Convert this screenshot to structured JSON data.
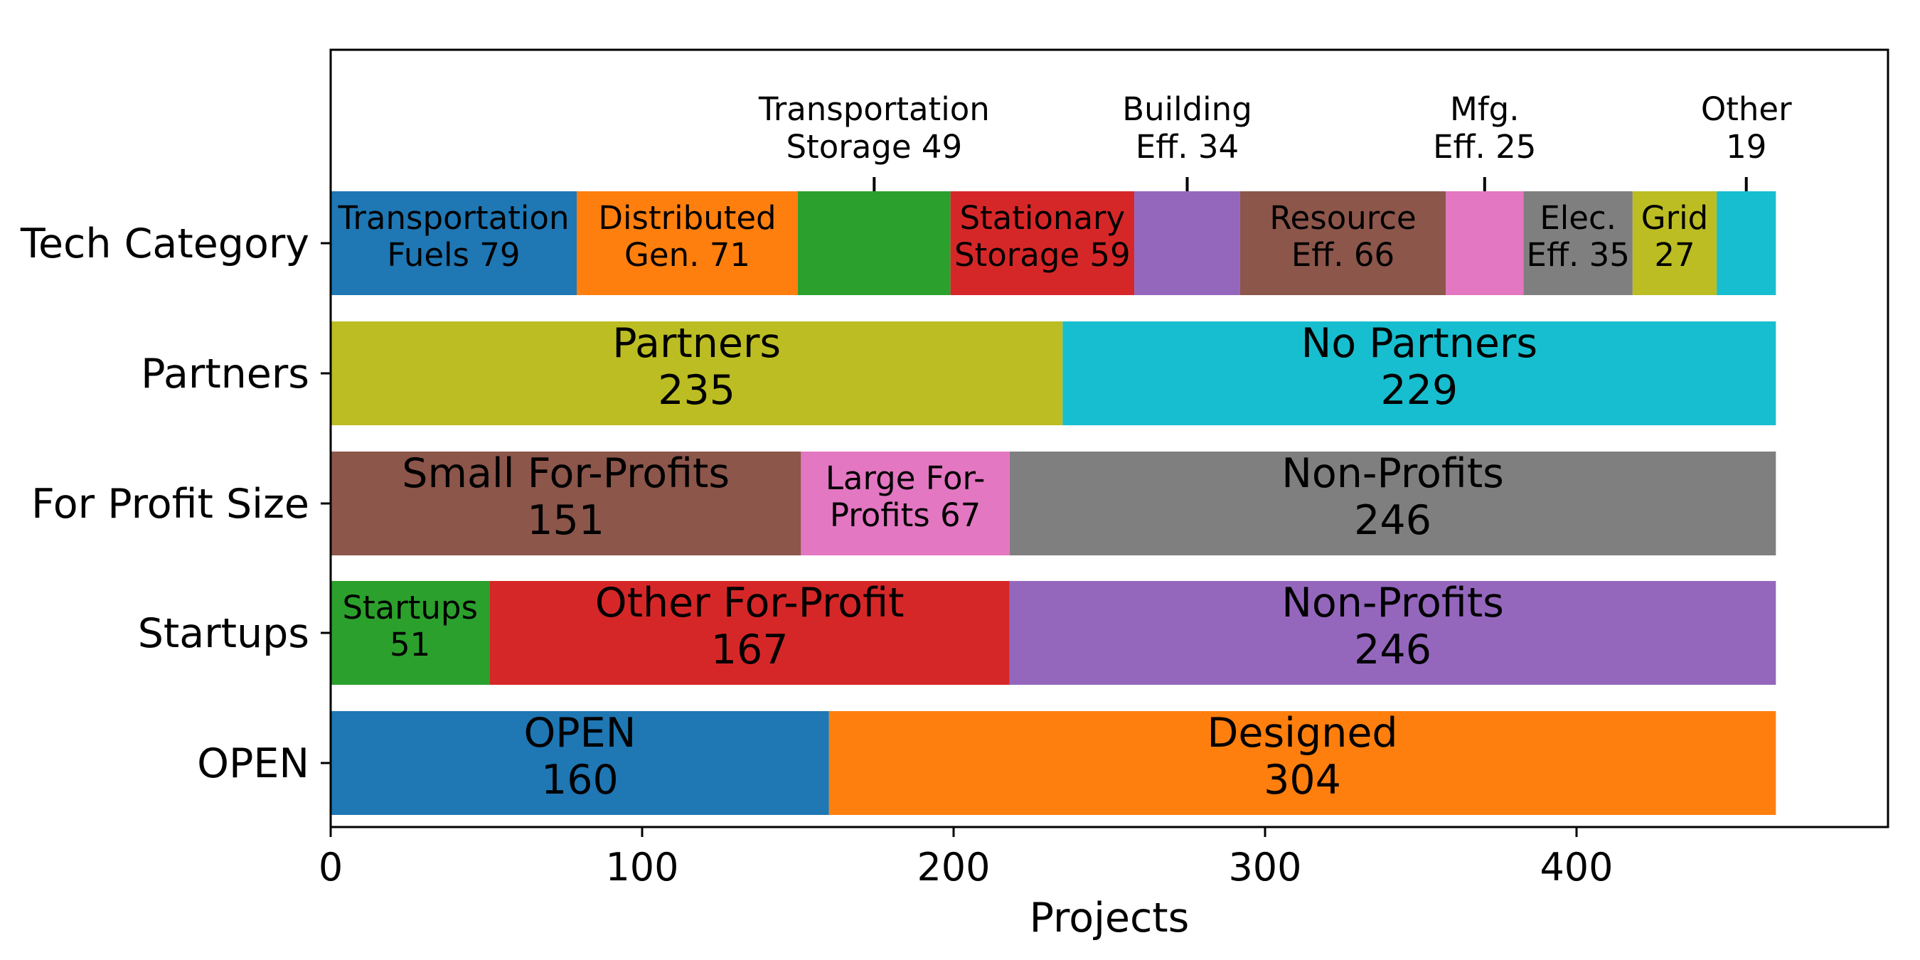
{
  "chart_data": {
    "type": "bar",
    "orientation": "horizontal",
    "stacked": true,
    "xlabel": "Projects",
    "ylabel": "",
    "title": "",
    "xlim": [
      0,
      500
    ],
    "xticks": [
      "0",
      "100",
      "200",
      "300",
      "400"
    ],
    "grid": false,
    "legend": "none",
    "categories": [
      "Tech Category",
      "Partners",
      "For Profit Size",
      "Startups",
      "OPEN"
    ],
    "rows": [
      {
        "category": "Tech Category",
        "segments": [
          {
            "lines": [
              "Transportation",
              "Fuels 79"
            ],
            "value": 79,
            "color": "#1f77b4",
            "label_pos": "inside"
          },
          {
            "lines": [
              "Distributed",
              "Gen. 71"
            ],
            "value": 71,
            "color": "#ff7f0e",
            "label_pos": "inside"
          },
          {
            "lines": [
              "Transportation",
              "Storage 49"
            ],
            "value": 49,
            "color": "#2ca02c",
            "label_pos": "above"
          },
          {
            "lines": [
              "Stationary",
              "Storage 59"
            ],
            "value": 59,
            "color": "#d62728",
            "label_pos": "inside"
          },
          {
            "lines": [
              "Building",
              "Eff. 34"
            ],
            "value": 34,
            "color": "#9467bd",
            "label_pos": "above"
          },
          {
            "lines": [
              "Resource",
              "Eff. 66"
            ],
            "value": 66,
            "color": "#8c564b",
            "label_pos": "inside"
          },
          {
            "lines": [
              "Mfg.",
              "Eff. 25"
            ],
            "value": 25,
            "color": "#e377c2",
            "label_pos": "above"
          },
          {
            "lines": [
              "Elec.",
              "Eff. 35"
            ],
            "value": 35,
            "color": "#7f7f7f",
            "label_pos": "inside"
          },
          {
            "lines": [
              "Grid",
              "27"
            ],
            "value": 27,
            "color": "#bcbd22",
            "label_pos": "inside"
          },
          {
            "lines": [
              "Other",
              "19"
            ],
            "value": 19,
            "color": "#17becf",
            "label_pos": "above"
          }
        ]
      },
      {
        "category": "Partners",
        "segments": [
          {
            "lines": [
              "Partners",
              "235"
            ],
            "value": 235,
            "color": "#bcbd22",
            "label_pos": "inside"
          },
          {
            "lines": [
              "No Partners",
              "229"
            ],
            "value": 229,
            "color": "#17becf",
            "label_pos": "inside"
          }
        ]
      },
      {
        "category": "For Profit Size",
        "segments": [
          {
            "lines": [
              "Small For-Profits",
              "151"
            ],
            "value": 151,
            "color": "#8c564b",
            "label_pos": "inside"
          },
          {
            "lines": [
              "Large For-",
              "Profits 67"
            ],
            "value": 67,
            "color": "#e377c2",
            "label_pos": "inside"
          },
          {
            "lines": [
              "Non-Profits",
              "246"
            ],
            "value": 246,
            "color": "#7f7f7f",
            "label_pos": "inside"
          }
        ]
      },
      {
        "category": "Startups",
        "segments": [
          {
            "lines": [
              "Startups",
              "51"
            ],
            "value": 51,
            "color": "#2ca02c",
            "label_pos": "inside"
          },
          {
            "lines": [
              "Other For-Profit",
              "167"
            ],
            "value": 167,
            "color": "#d62728",
            "label_pos": "inside"
          },
          {
            "lines": [
              "Non-Profits",
              "246"
            ],
            "value": 246,
            "color": "#9467bd",
            "label_pos": "inside"
          }
        ]
      },
      {
        "category": "OPEN",
        "segments": [
          {
            "lines": [
              "OPEN",
              "160"
            ],
            "value": 160,
            "color": "#1f77b4",
            "label_pos": "inside"
          },
          {
            "lines": [
              "Designed",
              "304"
            ],
            "value": 304,
            "color": "#ff7f0e",
            "label_pos": "inside"
          }
        ]
      }
    ]
  }
}
